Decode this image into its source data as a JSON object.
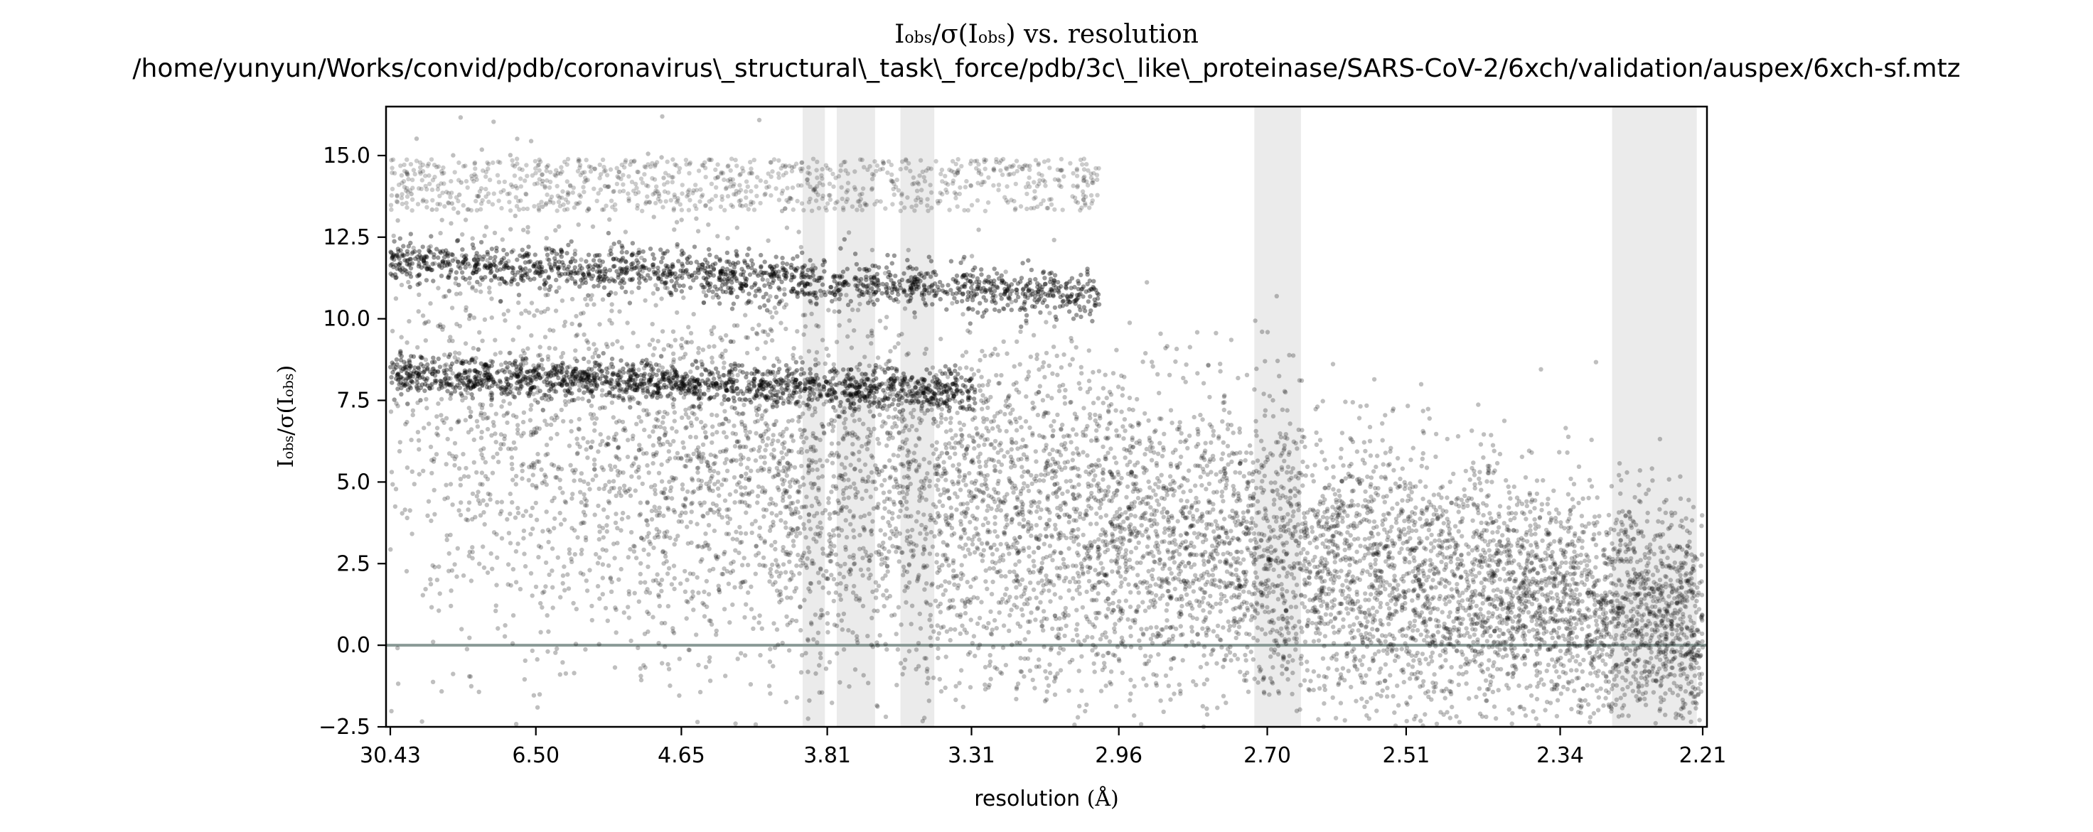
{
  "chart_data": {
    "type": "scatter",
    "title_line1_main": "I",
    "title_line1_sub1": "obs",
    "title_line1_mid": "/σ(I",
    "title_line1_sub2": "obs",
    "title_line1_end": ") vs. resolution",
    "title_line2": "/home/yunyun/Works/convid/pdb/coronavirus\\_structural\\_task\\_force/pdb/3c\\_like\\_proteinase/SARS-CoV-2/6xch/validation/auspex/6xch-sf.mtz",
    "xlabel_main": "resolution ",
    "xlabel_unit": "(Å)",
    "ylabel_main": "I",
    "ylabel_sub1": "obs",
    "ylabel_mid": "/σ(I",
    "ylabel_sub2": "obs",
    "ylabel_end": ")",
    "ylim": [
      -2.5,
      16.5
    ],
    "x_ticks": [
      "30.43",
      "6.50",
      "4.65",
      "3.81",
      "3.31",
      "2.96",
      "2.70",
      "2.51",
      "2.34",
      "2.21"
    ],
    "y_ticks": [
      "−2.5",
      "0.0",
      "2.5",
      "5.0",
      "7.5",
      "10.0",
      "12.5",
      "15.0"
    ],
    "y_tick_values": [
      -2.5,
      0.0,
      2.5,
      5.0,
      7.5,
      10.0,
      12.5,
      15.0
    ],
    "x_scale": "1/d^2",
    "d_min": 2.21,
    "d_max": 30.43,
    "zero_line": 0.0,
    "ice_ring_bands_resolution": [
      [
        3.92,
        3.82
      ],
      [
        3.77,
        3.62
      ],
      [
        3.53,
        3.42
      ],
      [
        2.72,
        2.65
      ],
      [
        2.29,
        2.215
      ]
    ],
    "point_color": "#000000",
    "band_color": "#ebebeb",
    "zero_line_color": "#8a9a96",
    "series": [
      {
        "type": "band",
        "y_center": 11.8,
        "spread": 0.35,
        "x_from": 30.43,
        "x_to": 3.0,
        "slope": -2.0
      },
      {
        "type": "band",
        "y_center": 8.3,
        "spread": 0.3,
        "x_from": 30.43,
        "x_to": 3.3,
        "slope": -1.2
      },
      {
        "type": "cloud",
        "description_free": true,
        "trend_start": 7.0,
        "trend_end": 0.6
      }
    ]
  }
}
